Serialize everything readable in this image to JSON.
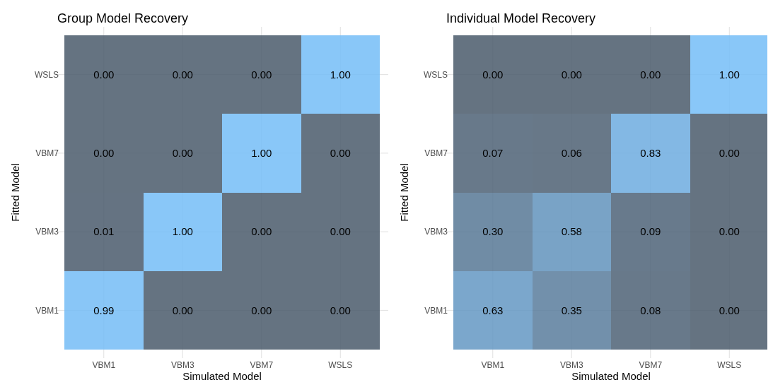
{
  "chart_data": [
    {
      "type": "heatmap",
      "title": "Group Model Recovery",
      "xlabel": "Simulated Model",
      "ylabel": "Fitted Model",
      "categories": [
        "VBM1",
        "VBM3",
        "VBM7",
        "WSLS"
      ],
      "y_categories": [
        "WSLS",
        "VBM7",
        "VBM3",
        "VBM1"
      ],
      "colors": [
        "#4a5a6b",
        "#74bdf7"
      ],
      "grid": true,
      "cells": [
        [
          0,
          0,
          0,
          1
        ],
        [
          0,
          0,
          1,
          0
        ],
        [
          0.01,
          1,
          0,
          0
        ],
        [
          0.99,
          0,
          0,
          0
        ]
      ],
      "cell_labels": [
        [
          "0.00",
          "0.00",
          "0.00",
          "1.00"
        ],
        [
          "0.00",
          "0.00",
          "1.00",
          "0.00"
        ],
        [
          "0.01",
          "1.00",
          "0.00",
          "0.00"
        ],
        [
          "0.99",
          "0.00",
          "0.00",
          "0.00"
        ]
      ]
    },
    {
      "type": "heatmap",
      "title": "Individual Model Recovery",
      "xlabel": "Simulated Model",
      "ylabel": "Fitted Model",
      "categories": [
        "VBM1",
        "VBM3",
        "VBM7",
        "WSLS"
      ],
      "y_categories": [
        "WSLS",
        "VBM7",
        "VBM3",
        "VBM1"
      ],
      "colors": [
        "#4a5a6b",
        "#74bdf7"
      ],
      "grid": true,
      "cells": [
        [
          0,
          0,
          0,
          1
        ],
        [
          0.07,
          0.06,
          0.83,
          0
        ],
        [
          0.3,
          0.58,
          0.09,
          0
        ],
        [
          0.63,
          0.35,
          0.08,
          0
        ]
      ],
      "cell_labels": [
        [
          "0.00",
          "0.00",
          "0.00",
          "1.00"
        ],
        [
          "0.07",
          "0.06",
          "0.83",
          "0.00"
        ],
        [
          "0.30",
          "0.58",
          "0.09",
          "0.00"
        ],
        [
          "0.63",
          "0.35",
          "0.08",
          "0.00"
        ]
      ]
    }
  ]
}
